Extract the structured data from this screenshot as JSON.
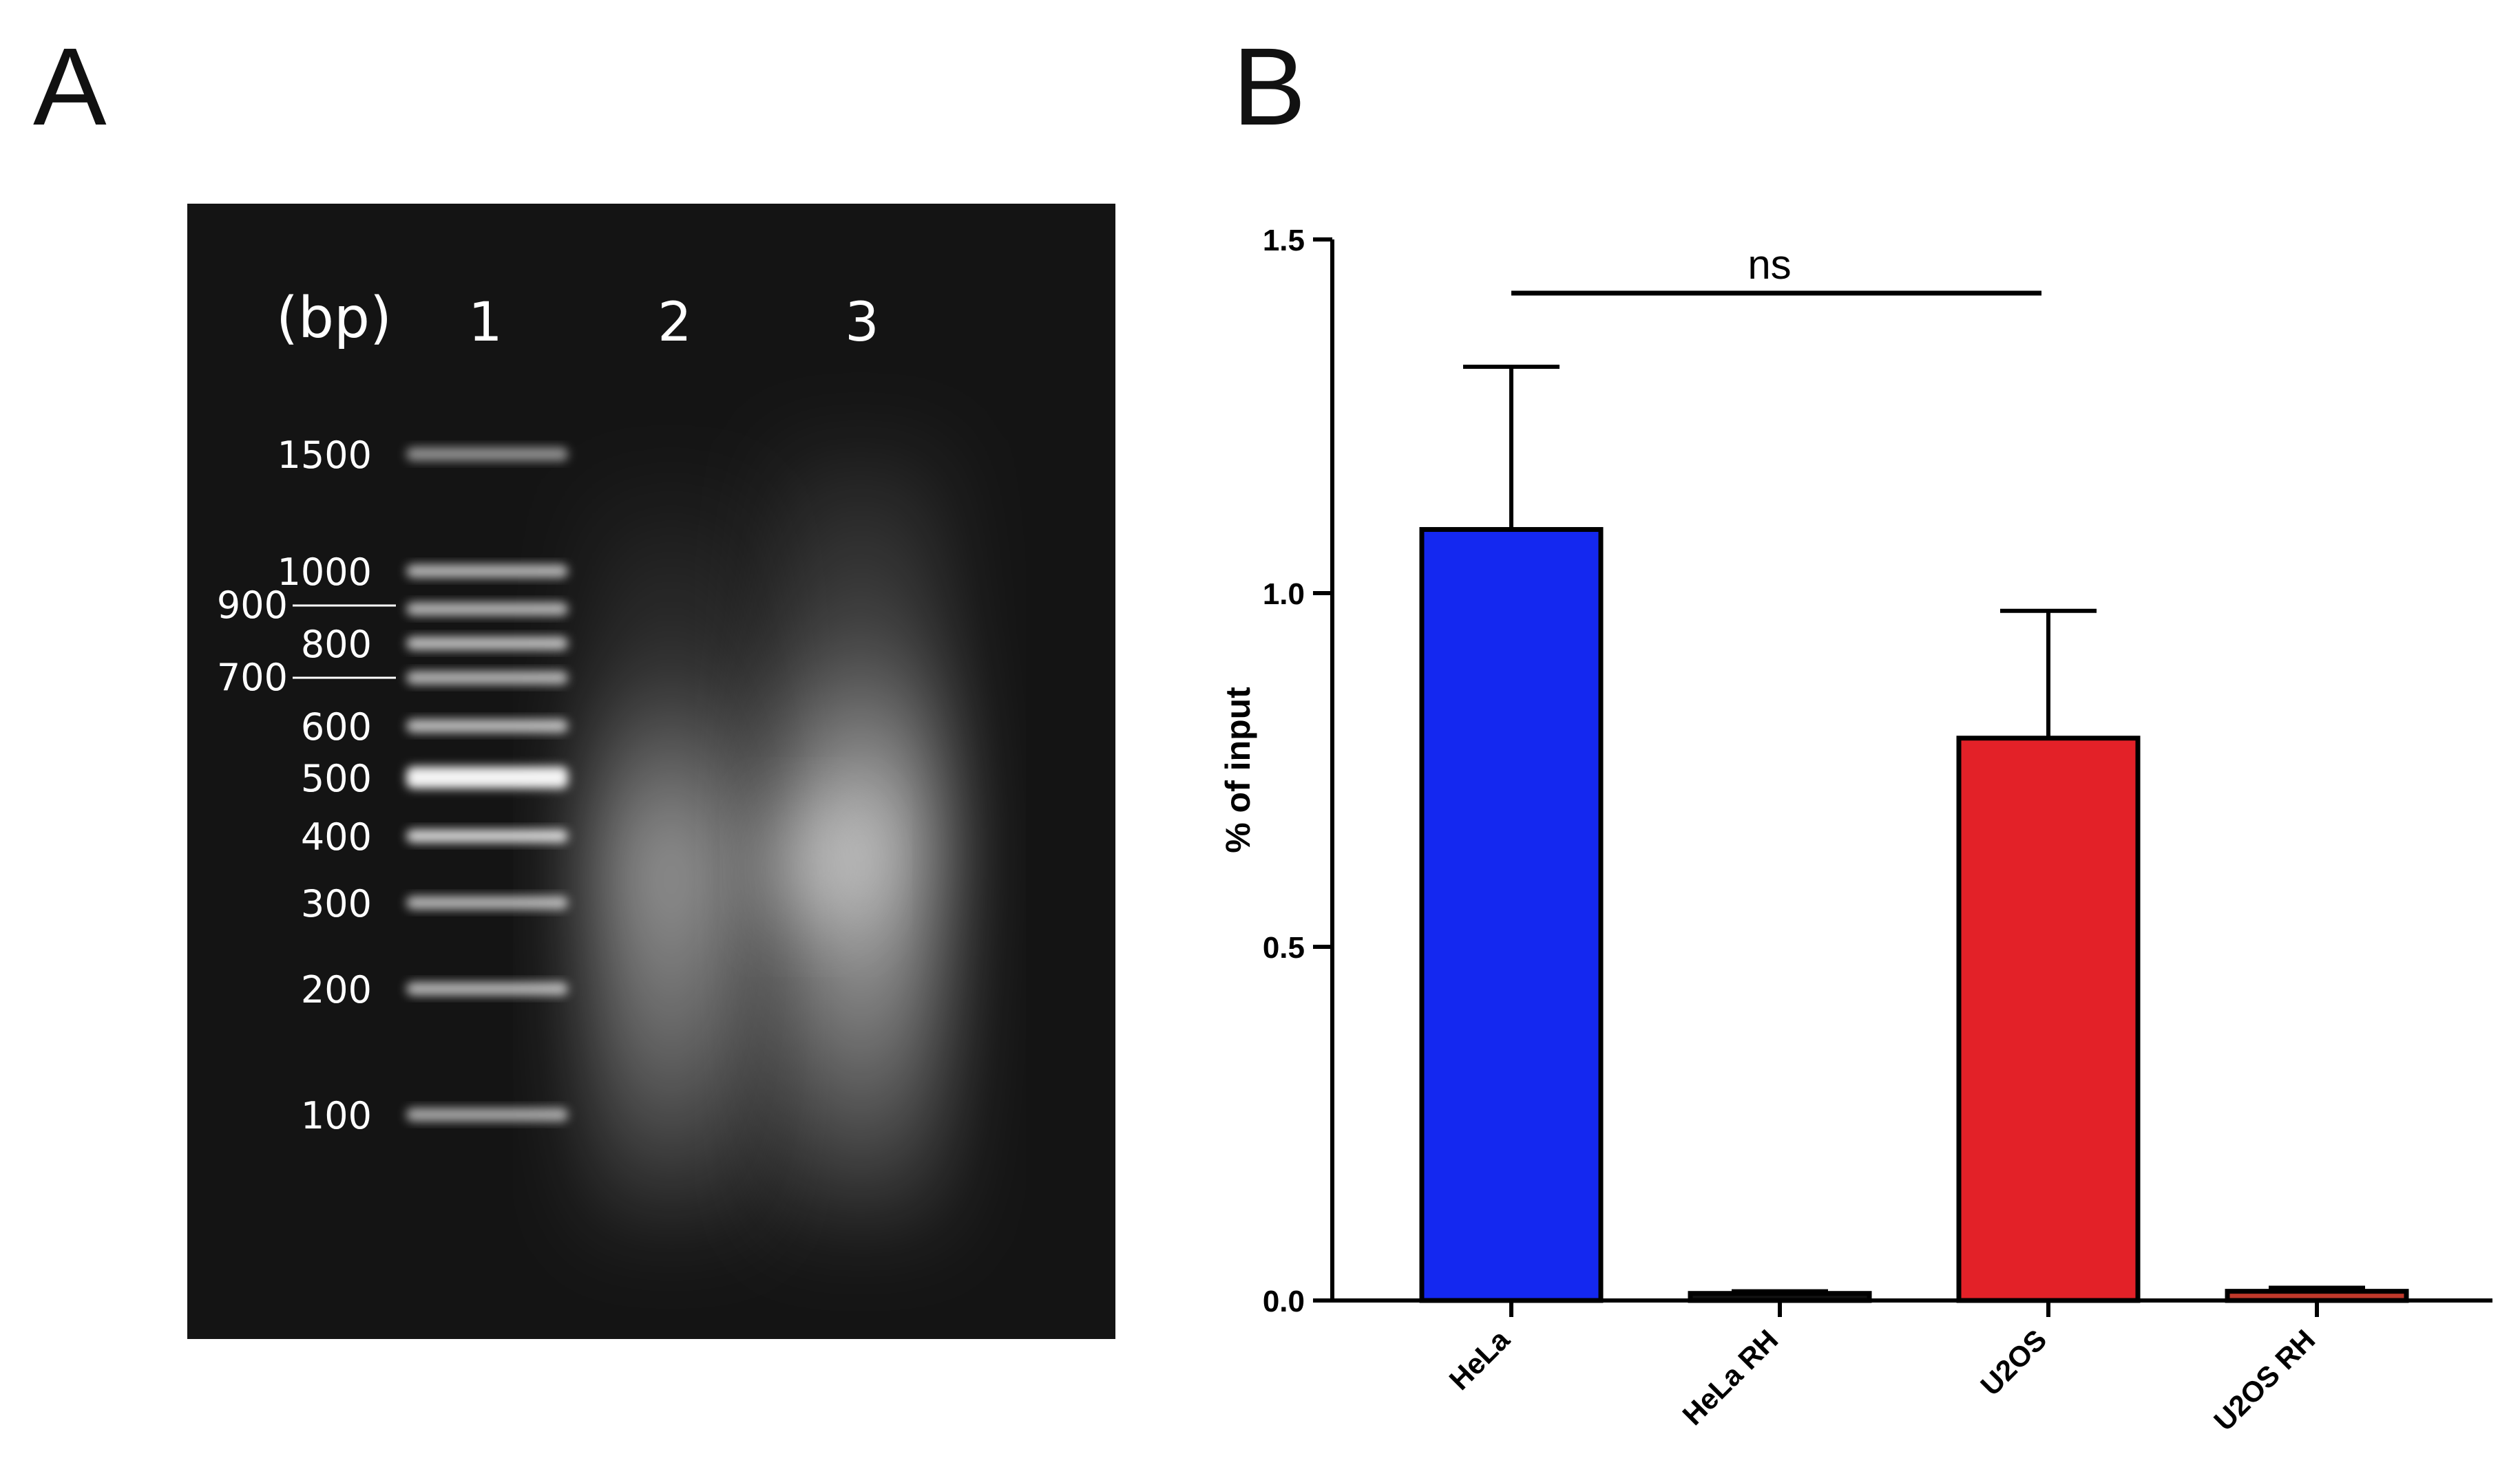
{
  "panels": {
    "a_label": "A",
    "b_label": "B"
  },
  "gel": {
    "unit_label": "(bp)",
    "lane_labels": [
      "1",
      "2",
      "3"
    ],
    "ladder_labels": [
      "1500",
      "1000",
      "800",
      "600",
      "500",
      "400",
      "300",
      "200",
      "100"
    ],
    "marker_labels": [
      "900",
      "700"
    ],
    "colors": {
      "background": "#141414",
      "band": "#f4f4f4",
      "label": "#ffffff"
    }
  },
  "chart_data": {
    "type": "bar",
    "categories": [
      "HeLa",
      "HeLa RH",
      "U2OS",
      "U2OS RH"
    ],
    "values": [
      1.09,
      0.01,
      0.795,
      0.013
    ],
    "errors": [
      0.23,
      0.003,
      0.18,
      0.005
    ],
    "colors": [
      "#1428f0",
      "#111111",
      "#e32128",
      "#c0392b"
    ],
    "ylabel": "% of input",
    "ylim": [
      0,
      1.5
    ],
    "yticks": [
      "0.0",
      "0.5",
      "1.0",
      "1.5"
    ],
    "ytick_values": [
      0,
      0.5,
      1.0,
      1.5
    ],
    "significance": {
      "from": "HeLa",
      "to": "U2OS",
      "label": "ns"
    },
    "grid": false
  }
}
